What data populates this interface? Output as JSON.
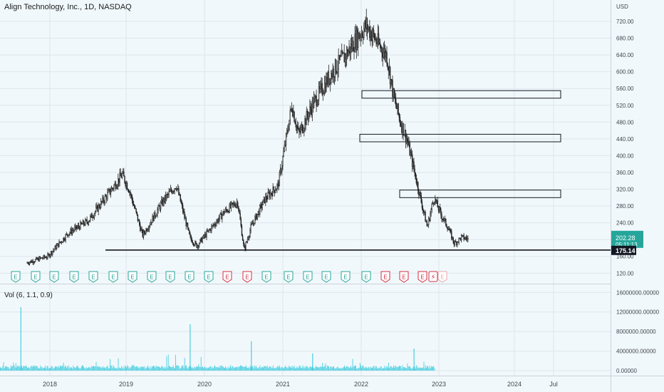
{
  "header": {
    "title": "Align Technology, Inc., 1D, NASDAQ"
  },
  "volume_indicator": {
    "label": "Vol (6, 1.1, 0.9)"
  },
  "price_axis": {
    "currency": "USD"
  },
  "last_price": {
    "value": "202.28",
    "countdown": "05:11:13",
    "color": "#26a69a"
  },
  "support_level": {
    "value": "175.14",
    "color": "#131722"
  },
  "chart_data": [
    {
      "type": "candlestick",
      "title": "Align Technology, Inc., 1D, NASDAQ",
      "x_tick_labels": [
        "2018",
        "2019",
        "2020",
        "2021",
        "2022",
        "2023",
        "2024",
        "Jul"
      ],
      "y_tick_labels": [
        "720.00",
        "680.00",
        "640.00",
        "600.00",
        "560.00",
        "520.00",
        "480.00",
        "440.00",
        "400.00",
        "360.00",
        "320.00",
        "280.00",
        "240.00",
        "200.00",
        "160.00",
        "120.00"
      ],
      "ylim": [
        112,
        745
      ],
      "y_axis_unit": "USD",
      "grid": true,
      "series": [
        {
          "x": [
            "2017-07",
            "2017-10",
            "2018-01",
            "2018-04",
            "2018-07",
            "2018-09",
            "2018-10",
            "2018-12",
            "2019-03",
            "2019-05",
            "2019-07",
            "2019-08",
            "2019-10",
            "2019-12",
            "2020-02",
            "2020-03",
            "2020-04",
            "2020-06",
            "2020-08",
            "2020-10",
            "2020-11",
            "2021-01",
            "2021-04",
            "2021-06",
            "2021-08",
            "2021-09",
            "2021-11",
            "2021-12",
            "2022-01",
            "2022-02",
            "2022-03",
            "2022-04",
            "2022-05",
            "2022-06",
            "2022-07",
            "2022-08",
            "2022-09",
            "2022-10",
            "2022-11",
            "2022-12"
          ],
          "close": [
            145,
            160,
            215,
            245,
            310,
            355,
            320,
            210,
            290,
            330,
            205,
            185,
            225,
            265,
            290,
            175,
            230,
            295,
            330,
            520,
            450,
            520,
            600,
            640,
            690,
            710,
            660,
            640,
            540,
            480,
            440,
            370,
            300,
            230,
            300,
            260,
            230,
            190,
            205,
            202
          ]
        }
      ],
      "horizontal_lines": [
        {
          "label": "175.14",
          "value": 175.14
        }
      ],
      "zones": [
        {
          "from": 537,
          "to": 555
        },
        {
          "from": 433,
          "to": 451
        },
        {
          "from": 300,
          "to": 318
        }
      ],
      "earnings_markers": [
        "E",
        "E",
        "E",
        "E",
        "E",
        "E",
        "E",
        "E",
        "E",
        "E",
        "E",
        "E",
        "E",
        "E",
        "E",
        "E",
        "E",
        "E",
        "E",
        "E",
        "E",
        "E",
        "E",
        "E"
      ]
    },
    {
      "type": "bar",
      "title": "Vol (6, 1.1, 0.9)",
      "y_tick_labels": [
        "16000000.00000",
        "12000000.00000",
        "8000000.00000",
        "4000000.00000",
        "0.00000"
      ],
      "ylim": [
        0,
        17500000
      ],
      "grid": true,
      "color": "#26c6da",
      "spikes": [
        {
          "x": "2017-06",
          "value": 13000000
        },
        {
          "x": "2019-07",
          "value": 9500000
        },
        {
          "x": "2020-04",
          "value": 6000000
        },
        {
          "x": "2021-01",
          "value": 3500000
        },
        {
          "x": "2022-04",
          "value": 4500000
        }
      ]
    }
  ]
}
